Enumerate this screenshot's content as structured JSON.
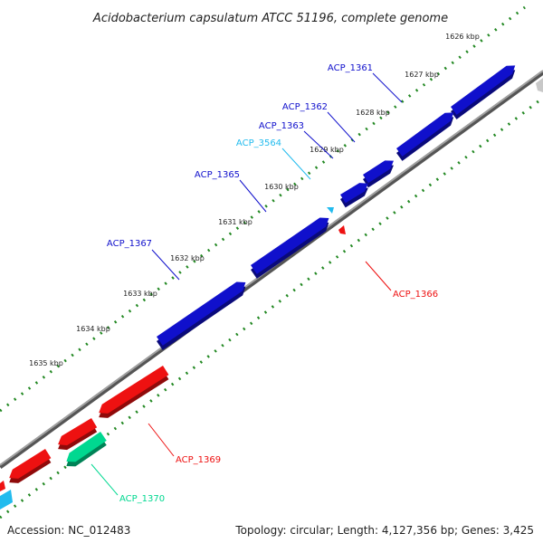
{
  "title": "Acidobacterium capsulatum ATCC 51196, complete genome",
  "footer": {
    "accession": "Accession: NC_012483",
    "summary": "Topology: circular; Length: 4,127,356 bp; Genes: 3,425"
  },
  "colors": {
    "plus_strand": "#1010cc",
    "minus_strand": "#ee1111",
    "rna": "#00d890",
    "pseudo": "#22bbee",
    "gray_feature": "#c8c8c8",
    "backbone": "#808080",
    "tick_dots": "#228822"
  },
  "ticks": [
    {
      "label": "1626 kbp"
    },
    {
      "label": "1627 kbp"
    },
    {
      "label": "1628 kbp"
    },
    {
      "label": "1629 kbp"
    },
    {
      "label": "1630 kbp"
    },
    {
      "label": "1631 kbp"
    },
    {
      "label": "1632 kbp"
    },
    {
      "label": "1633 kbp"
    },
    {
      "label": "1634 kbp"
    },
    {
      "label": "1635 kbp"
    }
  ],
  "genes": [
    {
      "name": "ACP_1361",
      "strand": "+",
      "color": "#1010cc"
    },
    {
      "name": "ACP_1362",
      "strand": "+",
      "color": "#1010cc"
    },
    {
      "name": "ACP_1363",
      "strand": "+",
      "color": "#1010cc"
    },
    {
      "name": "ACP_3564",
      "strand": "+",
      "color": "#22bbee"
    },
    {
      "name": "ACP_1365",
      "strand": "+",
      "color": "#1010cc"
    },
    {
      "name": "ACP_1367",
      "strand": "+",
      "color": "#1010cc"
    },
    {
      "name": "ACP_1366",
      "strand": "-",
      "color": "#ee1111"
    },
    {
      "name": "ACP_1369",
      "strand": "-",
      "color": "#ee1111"
    },
    {
      "name": "ACP_1370",
      "strand": "-",
      "color": "#00d890"
    }
  ]
}
